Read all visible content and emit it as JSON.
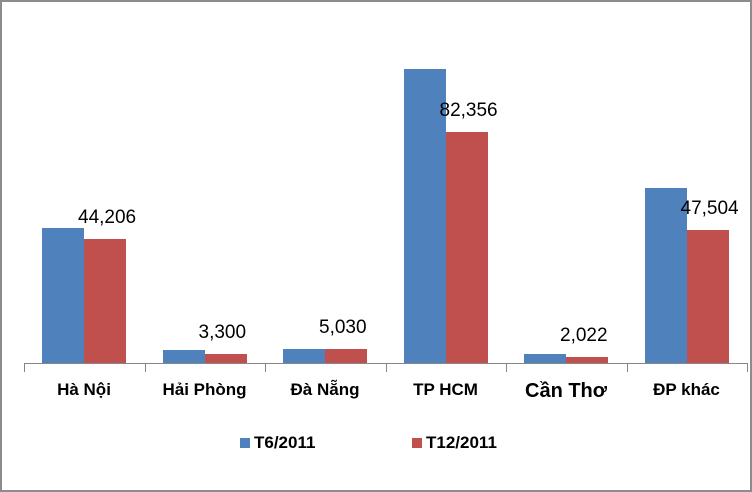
{
  "chart_data": {
    "type": "bar",
    "title": "",
    "xlabel": "",
    "ylabel": "",
    "categories": [
      "Hà Nội",
      "Hải Phòng",
      "Đà Nẵng",
      "TP HCM",
      "Cần Thơ",
      "ĐP khác"
    ],
    "series": [
      {
        "name": "T6/2011",
        "color": "#4f81bd",
        "values": [
          48100,
          4600,
          5000,
          104800,
          3200,
          62400
        ]
      },
      {
        "name": "T12/2011",
        "color": "#c0504d",
        "values": [
          44206,
          3300,
          5030,
          82356,
          2022,
          47504
        ]
      }
    ],
    "data_labels": [
      "44,206",
      "3,300",
      "5,030",
      "82,356",
      "2,022",
      "47,504"
    ],
    "data_labels_series": "T12/2011",
    "ylim": [
      0,
      110000
    ],
    "grid": false,
    "legend_position": "bottom"
  },
  "legend": [
    {
      "label": "T6/2011",
      "color": "#4f81bd"
    },
    {
      "label": "T12/2011",
      "color": "#c0504d"
    }
  ]
}
